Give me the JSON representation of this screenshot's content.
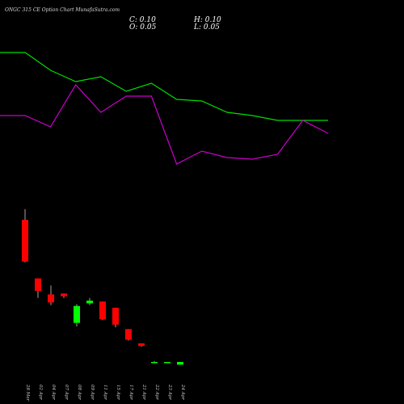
{
  "header": {
    "title": "ONGC 315 CE Option Chart MunafaSutra.com",
    "close": "C: 0.10",
    "high": "H: 0.10",
    "open": "O: 0.05",
    "low": "L: 0.05"
  },
  "colors": {
    "background": "#000000",
    "up": "#00ff00",
    "down": "#ff0000",
    "line_green": "#00dd00",
    "line_magenta": "#cc00cc"
  },
  "chart_data": {
    "type": "candlestick",
    "dates": [
      "28 Mar",
      "02 Apr",
      "04 Apr",
      "07 Apr",
      "08 Apr",
      "09 Apr",
      "11 Apr",
      "15 Apr",
      "17 Apr",
      "21 Apr",
      "22 Apr",
      "23 Apr",
      "24 Apr"
    ],
    "candles": [
      {
        "open": 9.0,
        "high": 9.6,
        "low": 6.6,
        "close": 6.65
      },
      {
        "open": 5.7,
        "high": 5.7,
        "low": 4.6,
        "close": 5.0
      },
      {
        "open": 4.8,
        "high": 5.3,
        "low": 4.2,
        "close": 4.35
      },
      {
        "open": 4.85,
        "high": 4.85,
        "low": 4.6,
        "close": 4.7
      },
      {
        "open": 3.2,
        "high": 4.25,
        "low": 3.0,
        "close": 4.15
      },
      {
        "open": 4.3,
        "high": 4.6,
        "low": 4.2,
        "close": 4.45
      },
      {
        "open": 4.4,
        "high": 4.4,
        "low": 3.35,
        "close": 3.4
      },
      {
        "open": 4.05,
        "high": 4.05,
        "low": 2.95,
        "close": 3.1
      },
      {
        "open": 2.85,
        "high": 2.85,
        "low": 2.2,
        "close": 2.25
      },
      {
        "open": 2.05,
        "high": 2.05,
        "low": 1.85,
        "close": 1.9
      },
      {
        "open": 1.0,
        "high": 1.05,
        "low": 0.95,
        "close": 1.0
      },
      {
        "open": 1.0,
        "high": 1.0,
        "low": 1.0,
        "close": 1.0
      },
      {
        "open": 0.85,
        "high": 1.0,
        "low": 0.85,
        "close": 1.0
      }
    ],
    "price_ylim": [
      0,
      10
    ],
    "overlay_lines": [
      {
        "color": "#00dd00",
        "values": [
          10.0,
          10.0,
          8.9,
          8.2,
          8.5,
          7.6,
          8.1,
          7.1,
          7.0,
          6.3,
          6.1,
          5.8,
          5.8,
          5.8
        ]
      },
      {
        "color": "#cc00cc",
        "values": [
          6.1,
          6.1,
          5.4,
          8.0,
          6.3,
          7.3,
          7.3,
          3.1,
          3.9,
          3.5,
          3.4,
          3.7,
          5.8,
          5.0
        ]
      }
    ],
    "overlay_ylim": [
      0,
      10
    ]
  }
}
